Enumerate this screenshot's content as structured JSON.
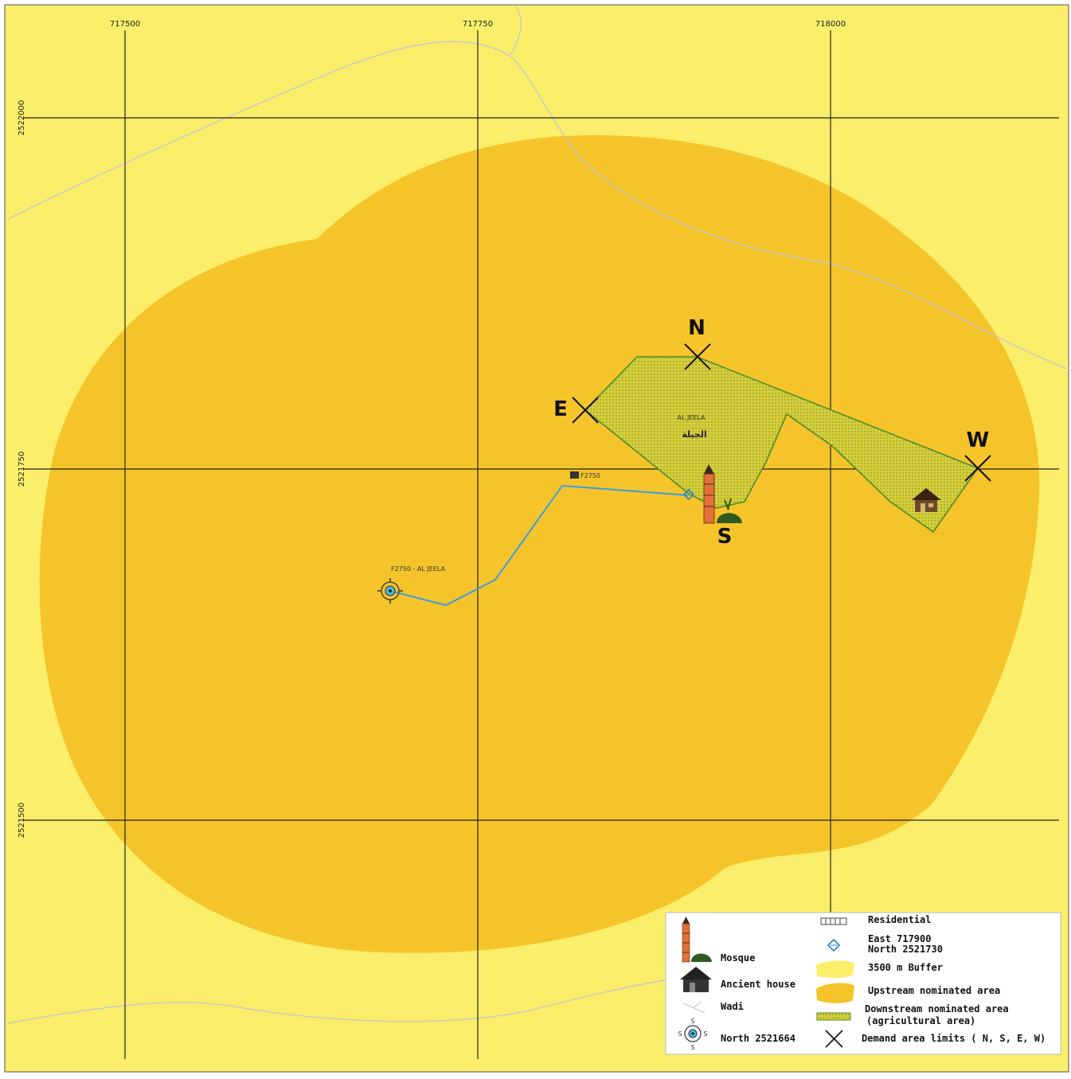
{
  "grid": {
    "easting_labels": [
      "717500",
      "717750",
      "718000"
    ],
    "northing_labels": [
      "2522000",
      "2521750",
      "2521500"
    ]
  },
  "map_labels": {
    "site_name_latin": "AL JEELA",
    "site_name_arabic": "الجيلة",
    "well_id": "F2750",
    "well_label": "F2750 - AL JEELA"
  },
  "cardinal_points": {
    "north": "N",
    "south": "S",
    "east": "E",
    "west": "W"
  },
  "legend": {
    "mosque": "Mosque",
    "ancient_house": "Ancient house",
    "wadi": "Wadi",
    "north_marker": "North  2521664",
    "residential": "Residential",
    "east_coord": "East   717900",
    "north_coord": "North  2521730",
    "buffer": "3500 m Buffer",
    "upstream": "Upstream nominated area",
    "downstream_line1": "Downstream nominated area",
    "downstream_line2": "(agricultural area)",
    "demand_limits": "Demand area limits ( N, S, E, W)"
  },
  "colors": {
    "background_yellow": "#FBEE6A",
    "buffer_orange": "#F4C42A",
    "downstream_green": "#D8CF3E",
    "downstream_edge": "#4E8A2A",
    "wadi": "#C8C8C8",
    "pipeline_blue": "#3B9CE0"
  }
}
